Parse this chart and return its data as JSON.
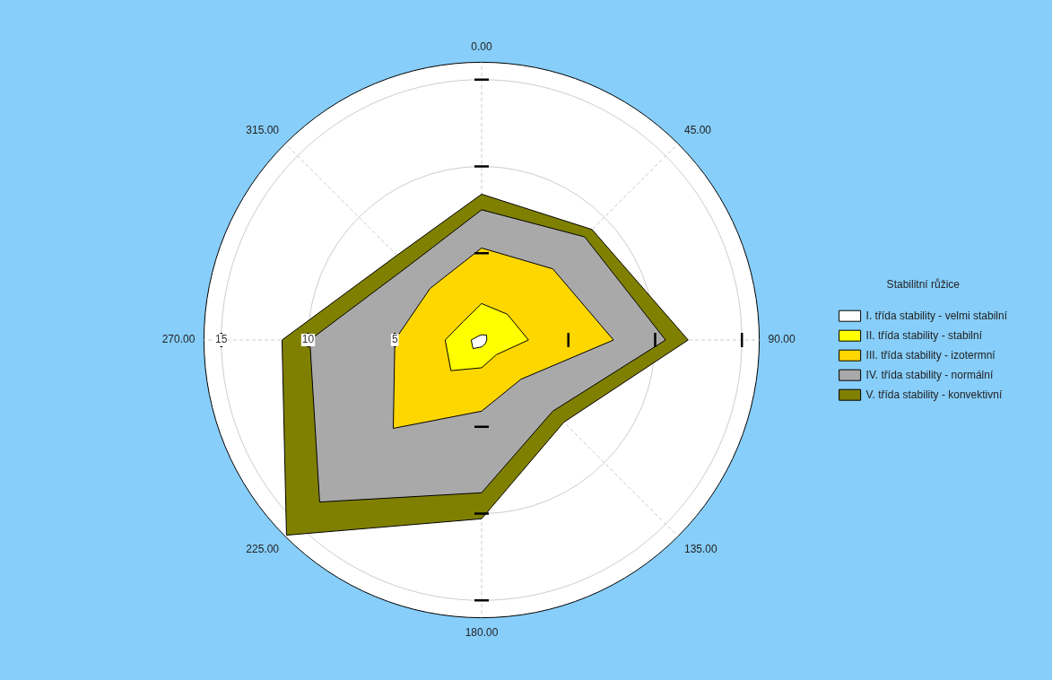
{
  "chart_data": {
    "type": "radar",
    "legend": "right",
    "legend_title": "Stabilitní růžice",
    "marker": "none",
    "grid": true,
    "categories": [
      "0.00",
      "45.00",
      "90.00",
      "135.00",
      "180.00",
      "225.00",
      "270.00",
      "315.00"
    ],
    "ylim": [
      0,
      16
    ],
    "yticks": [
      5,
      10,
      15
    ],
    "series": [
      {
        "name": "I. třída stability - velmi stabilní",
        "color": "#ffffff",
        "values": [
          0.3,
          0.4,
          0.3,
          0.3,
          0.4,
          0.7,
          0.6,
          0.3
        ]
      },
      {
        "name": "II. třída stability - stabilní",
        "color": "#ffff00",
        "values": [
          2.1,
          2.1,
          2.7,
          1.2,
          1.6,
          2.5,
          2.1,
          1.5
        ]
      },
      {
        "name": "III. třída stability - izotermní",
        "color": "#ffd700",
        "values": [
          5.3,
          5.8,
          7.6,
          3.2,
          4.1,
          7.2,
          5.0,
          4.2
        ]
      },
      {
        "name": "IV. třída stability - normální",
        "color": "#a9a9a9",
        "values": [
          7.5,
          8.4,
          10.6,
          5.8,
          8.8,
          13.2,
          9.9,
          6.0
        ]
      },
      {
        "name": "V. třída stability - konvektivní",
        "color": "#808000",
        "values": [
          8.4,
          9.0,
          11.9,
          6.7,
          10.3,
          15.9,
          11.5,
          6.9
        ]
      }
    ]
  }
}
